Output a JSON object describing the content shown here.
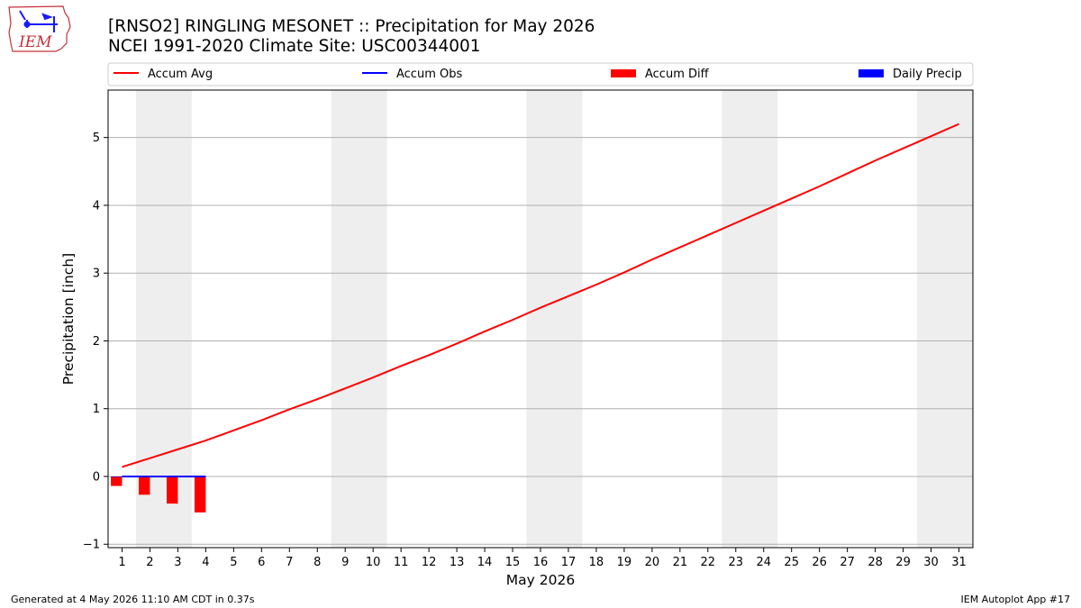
{
  "logo_text": "IEM",
  "footer": {
    "generated": "Generated at 4 May 2026 11:10 AM CDT in 0.37s",
    "app": "IEM Autoplot App #17"
  },
  "chart_data": {
    "type": "line",
    "title": "[RNSO2] RINGLING MESONET :: Precipitation for May 2026",
    "subtitle": "NCEI 1991-2020 Climate Site: USC00344001",
    "xlabel": "May 2026",
    "ylabel": "Precipitation [inch]",
    "xlim": [
      0.5,
      31.5
    ],
    "ylim": [
      -1.05,
      5.7
    ],
    "x_ticks": [
      1,
      2,
      3,
      4,
      5,
      6,
      7,
      8,
      9,
      10,
      11,
      12,
      13,
      14,
      15,
      16,
      17,
      18,
      19,
      20,
      21,
      22,
      23,
      24,
      25,
      26,
      27,
      28,
      29,
      30,
      31
    ],
    "y_ticks": [
      -1,
      0,
      1,
      2,
      3,
      4,
      5
    ],
    "grid": "y",
    "legend_position": "top",
    "weekend_shading": [
      [
        1.5,
        3.5
      ],
      [
        8.5,
        10.5
      ],
      [
        15.5,
        17.5
      ],
      [
        22.5,
        24.5
      ],
      [
        29.5,
        31.5
      ]
    ],
    "series": [
      {
        "name": "Accum Avg",
        "kind": "line",
        "color": "#ff0000",
        "x": [
          1,
          2,
          3,
          4,
          5,
          6,
          7,
          8,
          9,
          10,
          11,
          12,
          13,
          14,
          15,
          16,
          17,
          18,
          19,
          20,
          21,
          22,
          23,
          24,
          25,
          26,
          27,
          28,
          29,
          30,
          31
        ],
        "values": [
          0.14,
          0.27,
          0.4,
          0.53,
          0.68,
          0.83,
          0.99,
          1.14,
          1.3,
          1.46,
          1.63,
          1.79,
          1.96,
          2.14,
          2.31,
          2.49,
          2.66,
          2.83,
          3.01,
          3.2,
          3.38,
          3.56,
          3.74,
          3.92,
          4.1,
          4.28,
          4.47,
          4.66,
          4.84,
          5.02,
          5.2
        ]
      },
      {
        "name": "Accum Obs",
        "kind": "line",
        "color": "#0000ff",
        "x": [
          1,
          2,
          3,
          4
        ],
        "values": [
          0,
          0,
          0,
          0
        ]
      },
      {
        "name": "Accum Diff",
        "kind": "bar",
        "color": "#ff0000",
        "x": [
          1,
          2,
          3,
          4
        ],
        "values": [
          -0.14,
          -0.27,
          -0.4,
          -0.53
        ]
      },
      {
        "name": "Daily Precip",
        "kind": "bar",
        "color": "#0000ff",
        "x": [
          1,
          2,
          3,
          4
        ],
        "values": [
          0,
          0,
          0,
          0
        ]
      }
    ]
  }
}
